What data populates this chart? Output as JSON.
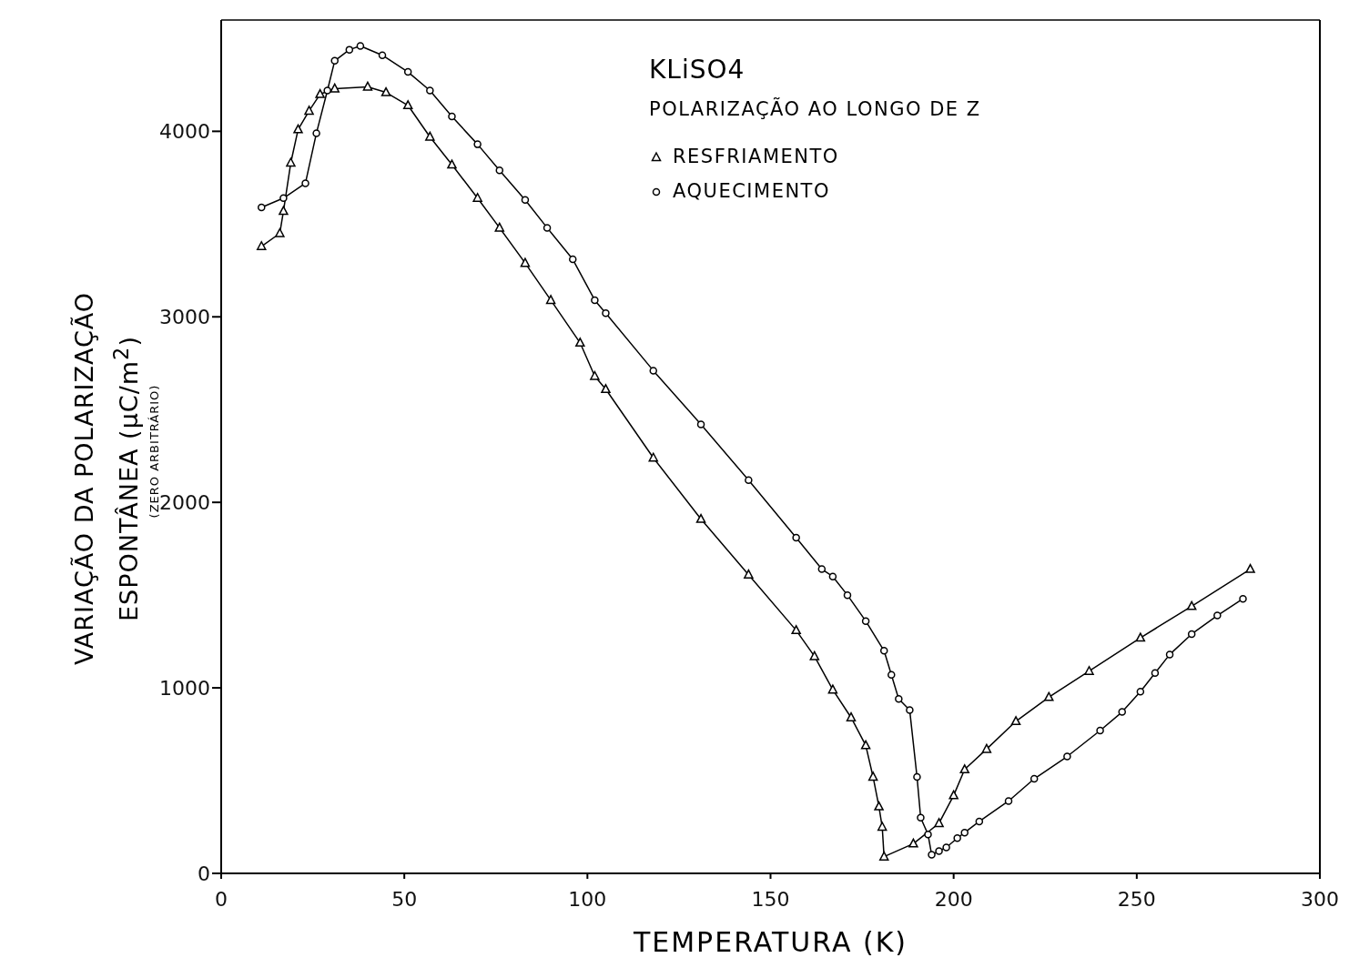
{
  "chart_data": {
    "type": "line",
    "title": "KLiSO4",
    "subtitle": "POLARIZAÇÃO AO LONGO DE Z",
    "xlabel": "TEMPERATURA (K)",
    "ylabel": "VARIAÇÃO DA POLARIZAÇÃO ESPONTÂNEA (μC/m$^{2}$)",
    "annotations": [
      "(ZERO ARBITRÁRIO)"
    ],
    "xlim": [
      0,
      300
    ],
    "xticks": [
      0,
      50,
      100,
      150,
      200,
      250,
      300
    ],
    "ylim": [
      0,
      4600
    ],
    "yticks": [
      0,
      1000,
      2000,
      3000,
      4000
    ],
    "grid": false,
    "legend": "top right",
    "line_style": "solid",
    "series": [
      {
        "name": "RESFRIAMENTO",
        "color": "#000000",
        "marker": "triangle",
        "x": [
          11,
          16,
          17,
          19,
          21,
          24,
          27,
          31,
          40,
          45,
          51,
          57,
          63,
          70,
          76,
          83,
          90,
          98,
          102,
          105,
          118,
          131,
          144,
          157,
          162,
          167,
          172,
          176,
          178,
          179.6,
          180.5,
          181,
          189,
          196,
          200,
          203,
          209,
          217,
          226,
          237,
          251,
          265,
          281
        ],
        "values": [
          3380,
          3450,
          3570,
          3830,
          4010,
          4110,
          4200,
          4230,
          4240,
          4210,
          4140,
          3970,
          3820,
          3640,
          3480,
          3290,
          3090,
          2860,
          2680,
          2610,
          2240,
          1910,
          1610,
          1310,
          1170,
          990,
          840,
          690,
          520,
          360,
          250,
          90,
          160,
          270,
          420,
          560,
          670,
          820,
          950,
          1090,
          1270,
          1440,
          1640
        ]
      },
      {
        "name": "AQUECIMENTO",
        "color": "#000000",
        "marker": "circle",
        "x": [
          11,
          17,
          23,
          26,
          29,
          31,
          35,
          38,
          44,
          51,
          57,
          63,
          70,
          76,
          83,
          89,
          96,
          102,
          105,
          118,
          131,
          144,
          157,
          164,
          167,
          171,
          176,
          181,
          183,
          185,
          188,
          190,
          191,
          193,
          194,
          196,
          198,
          201,
          203,
          207,
          215,
          222,
          231,
          240,
          246,
          251,
          255,
          259,
          265,
          272,
          279
        ],
        "values": [
          3590,
          3640,
          3720,
          3990,
          4220,
          4380,
          4440,
          4460,
          4410,
          4320,
          4220,
          4080,
          3930,
          3790,
          3630,
          3480,
          3310,
          3090,
          3020,
          2710,
          2420,
          2120,
          1810,
          1640,
          1600,
          1500,
          1360,
          1200,
          1070,
          940,
          880,
          520,
          300,
          210,
          100,
          120,
          140,
          190,
          220,
          280,
          390,
          510,
          630,
          770,
          870,
          980,
          1080,
          1180,
          1290,
          1390,
          1480
        ]
      }
    ]
  }
}
